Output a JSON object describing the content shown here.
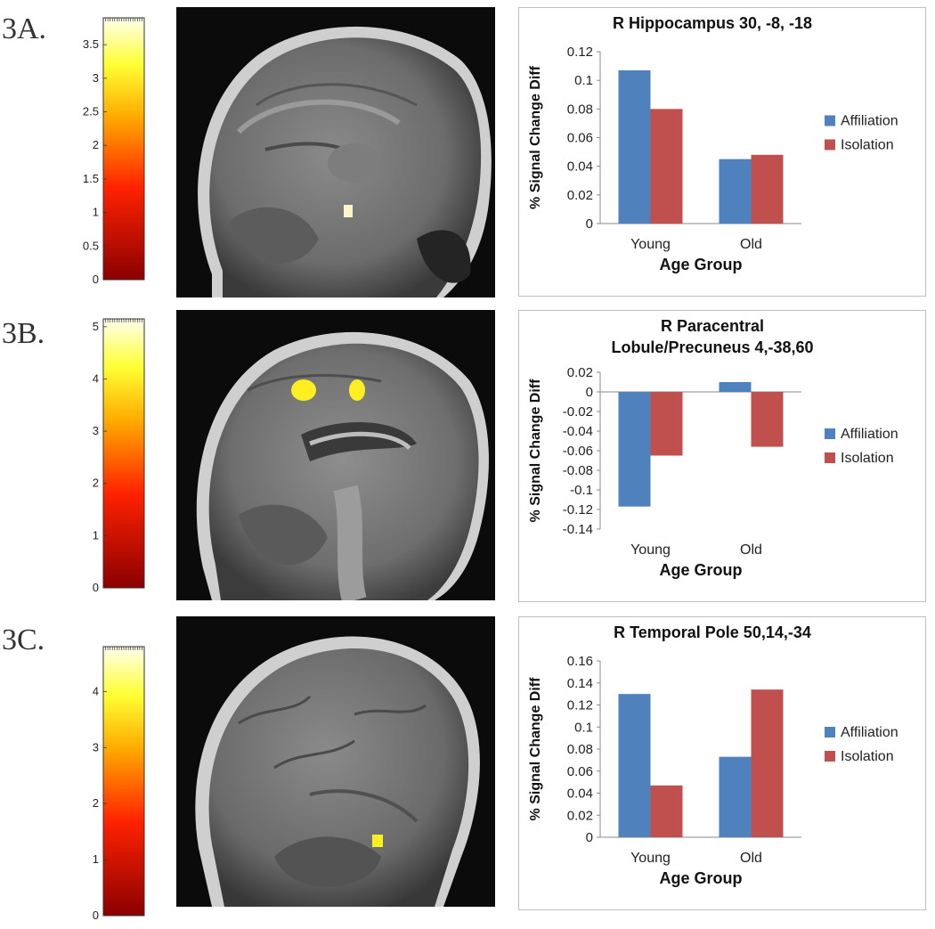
{
  "figure": {
    "panels": [
      {
        "label": "3A.",
        "colorbar": {
          "ticks": [
            "0",
            "0.5",
            "1",
            "1.5",
            "2",
            "2.5",
            "3",
            "3.5"
          ],
          "max": 3.9
        },
        "brain_image": {
          "view": "sagittal",
          "activation_color": "#fff6c8"
        }
      },
      {
        "label": "3B.",
        "colorbar": {
          "ticks": [
            "0",
            "1",
            "2",
            "3",
            "4",
            "5"
          ],
          "max": 5.15
        },
        "brain_image": {
          "view": "sagittal-midline",
          "activation_color": "#ffee22"
        }
      },
      {
        "label": "3C.",
        "colorbar": {
          "ticks": [
            "0",
            "1",
            "2",
            "3",
            "4"
          ],
          "max": 4.8
        },
        "brain_image": {
          "view": "sagittal-lateral",
          "activation_color": "#ffee22"
        }
      }
    ]
  },
  "chart_data": [
    {
      "type": "bar",
      "title_lines": [
        "R Hippocampus 30, -8, -18"
      ],
      "categories": [
        "Young",
        "Old"
      ],
      "series": [
        {
          "name": "Affiliation",
          "color": "#4f81bd",
          "values": [
            0.107,
            0.045
          ]
        },
        {
          "name": "Isolation",
          "color": "#c0504d",
          "values": [
            0.08,
            0.048
          ]
        }
      ],
      "xlabel": "Age Group",
      "ylabel": "% Signal Change Diff",
      "ylim": [
        0,
        0.12
      ],
      "yticks": [
        "0",
        "0.02",
        "0.04",
        "0.06",
        "0.08",
        "0.1",
        "0.12"
      ],
      "grid": false,
      "legend": "right"
    },
    {
      "type": "bar",
      "title_lines": [
        "R Paracentral",
        "Lobule/Precuneus 4,-38,60"
      ],
      "categories": [
        "Young",
        "Old"
      ],
      "series": [
        {
          "name": "Affiliation",
          "color": "#4f81bd",
          "values": [
            -0.117,
            0.01
          ]
        },
        {
          "name": "Isolation",
          "color": "#c0504d",
          "values": [
            -0.065,
            -0.056
          ]
        }
      ],
      "xlabel": "Age Group",
      "ylabel": "% Signal Change Diff",
      "ylim": [
        -0.14,
        0.02
      ],
      "yticks": [
        "0.02",
        "0",
        "-0.02",
        "-0.04",
        "-0.06",
        "-0.08",
        "-0.1",
        "-0.12",
        "-0.14"
      ],
      "grid": false,
      "legend": "right"
    },
    {
      "type": "bar",
      "title_lines": [
        "R Temporal Pole 50,14,-34"
      ],
      "categories": [
        "Young",
        "Old"
      ],
      "series": [
        {
          "name": "Affiliation",
          "color": "#4f81bd",
          "values": [
            0.13,
            0.073
          ]
        },
        {
          "name": "Isolation",
          "color": "#c0504d",
          "values": [
            0.047,
            0.134
          ]
        }
      ],
      "xlabel": "Age Group",
      "ylabel": "% Signal Change Diff",
      "ylim": [
        0,
        0.16
      ],
      "yticks": [
        "0",
        "0.02",
        "0.04",
        "0.06",
        "0.08",
        "0.1",
        "0.12",
        "0.14",
        "0.16"
      ],
      "grid": false,
      "legend": "right"
    }
  ]
}
